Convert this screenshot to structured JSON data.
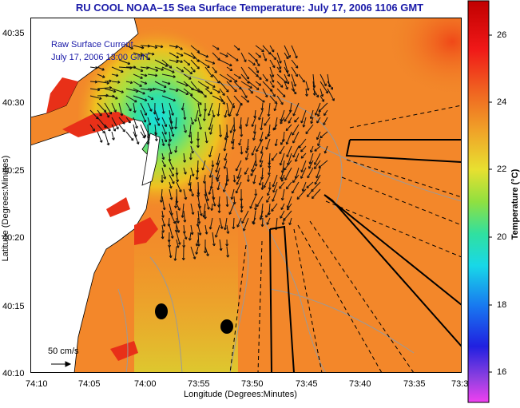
{
  "title": "RU COOL  NOAA–15  Sea Surface Temperature:  July 17, 2006 1106 GMT",
  "annotation": {
    "line1": "Raw Surface Current",
    "line2": "July 17, 2006 13:00 GMT"
  },
  "axes": {
    "y_label": "Latitude (Degrees:Minutes)",
    "x_label": "Longitude (Degrees:Minutes)",
    "y_ticks": [
      "40:35",
      "40:30",
      "40:25",
      "40:20",
      "40:15",
      "40:10"
    ],
    "x_ticks": [
      "74:10",
      "74:05",
      "74:00",
      "73:55",
      "73:50",
      "73:45",
      "73:40",
      "73:35",
      "73:3"
    ]
  },
  "colorbar": {
    "label": "Temperature (°C)",
    "ticks": [
      "26",
      "24",
      "22",
      "20",
      "18",
      "16"
    ],
    "range": [
      15,
      27
    ]
  },
  "scale": {
    "label": "50 cm/s"
  },
  "colors": {
    "title": "#1a1aa8",
    "land": "#ffffff",
    "warm_water": "#f28a2a",
    "cool_water": "#2fd6a0"
  }
}
